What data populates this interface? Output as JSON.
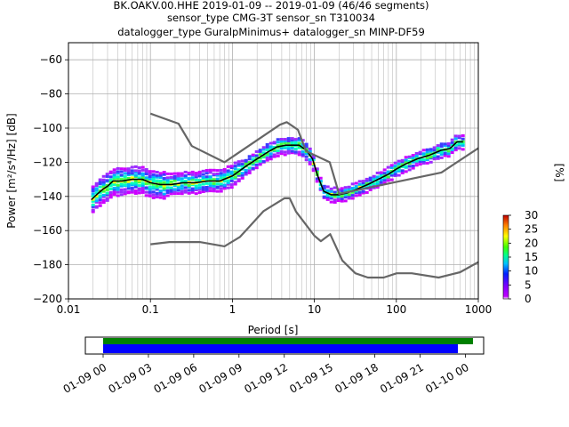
{
  "title_lines": [
    "BK.OAKV.00.HHE   2019-01-09 -- 2019-01-09  (46/46 segments)",
    "sensor_type CMG-3T sensor_sn T310034",
    "datalogger_type GuralpMinimus+ datalogger_sn MINP-DF59"
  ],
  "chart_data": [
    {
      "type": "heatmap",
      "title": "BK.OAKV.00.HHE   2019-01-09 -- 2019-01-09  (46/46 segments)",
      "xlabel": "Period [s]",
      "ylabel": "Power [m²/s⁴/Hz] [dB]",
      "xscale": "log",
      "xlim": [
        0.01,
        1000
      ],
      "ylim": [
        -200,
        -50
      ],
      "x_ticks": [
        "0.01",
        "0.1",
        "1",
        "10",
        "100",
        "1000"
      ],
      "y_ticks": [
        "−60",
        "−80",
        "−100",
        "−120",
        "−140",
        "−160",
        "−180",
        "−200"
      ],
      "grid": true,
      "series": [
        {
          "name": "",
          "style": "mean-black",
          "x": [
            0.019,
            0.022,
            0.026,
            0.03,
            0.035,
            0.045,
            0.06,
            0.08,
            0.1,
            0.13,
            0.18,
            0.25,
            0.35,
            0.5,
            0.7,
            1.0,
            1.5,
            2.0,
            2.7,
            3.5,
            4.5,
            5.5,
            6.5,
            8.0,
            9.5,
            11,
            13,
            16,
            20,
            25,
            32,
            45,
            60,
            80,
            100,
            130,
            180,
            250,
            350,
            450,
            550,
            650
          ],
          "y": [
            -142,
            -139,
            -136,
            -134,
            -131,
            -131,
            -130,
            -130,
            -132,
            -133,
            -133,
            -132,
            -132,
            -131,
            -131,
            -128,
            -122,
            -118,
            -114,
            -111,
            -110,
            -110,
            -110,
            -113,
            -118,
            -128,
            -137,
            -139,
            -139,
            -138,
            -136,
            -133,
            -130,
            -127,
            -124,
            -121,
            -118,
            -116,
            -113,
            -112,
            -108,
            -108
          ]
        },
        {
          "name": "",
          "style": "model-gray",
          "x": [
            0.1,
            0.22,
            0.32,
            0.8,
            3.8,
            4.6,
            6.3,
            7.9,
            15.4,
            20,
            354.8,
            10000
          ],
          "y": [
            -91.5,
            -97.4,
            -110.5,
            -120,
            -98,
            -96.5,
            -101,
            -113.5,
            -120,
            -138.5,
            -126,
            -80.1
          ]
        },
        {
          "name": "",
          "style": "model-gray",
          "x": [
            0.1,
            0.17,
            0.4,
            0.8,
            1.24,
            2.4,
            4.3,
            5.0,
            6.0,
            10,
            12,
            15.6,
            21.9,
            31.6,
            45,
            70,
            101,
            154,
            328,
            600,
            10000
          ],
          "y": [
            -168,
            -166.7,
            -166.7,
            -169.2,
            -163.7,
            -148.6,
            -141.1,
            -141.1,
            -149,
            -163,
            -166.2,
            -162.1,
            -177.5,
            -185,
            -187.5,
            -187.5,
            -185,
            -185,
            -187.5,
            -184.4,
            -151.9
          ]
        }
      ],
      "heatmap_extent_x": [
        0.019,
        650
      ],
      "heatmap_spread_db": [
        8,
        6,
        5,
        4,
        4
      ],
      "colorbar": {
        "label": "[%]",
        "range": [
          0,
          30
        ],
        "ticks": [
          "0",
          "5",
          "10",
          "15",
          "20",
          "25",
          "30"
        ]
      }
    },
    {
      "type": "timeline",
      "x_ticks": [
        "01-09 00",
        "01-09 03",
        "01-09 06",
        "01-09 09",
        "01-09 12",
        "01-09 15",
        "01-09 18",
        "01-09 21",
        "01-10 00"
      ],
      "bars": [
        {
          "name": "",
          "color": "#008000",
          "start": "01-09 00:00",
          "end": "01-10 00:30"
        },
        {
          "name": "",
          "color": "#0000ff",
          "start": "01-09 00:00",
          "end": "01-09 23:30"
        }
      ]
    }
  ],
  "colors": {
    "mean": "#000000",
    "model": "#666666",
    "grid": "#b0b0b0",
    "timeline_green": "#008000",
    "timeline_blue": "#0000ff"
  }
}
